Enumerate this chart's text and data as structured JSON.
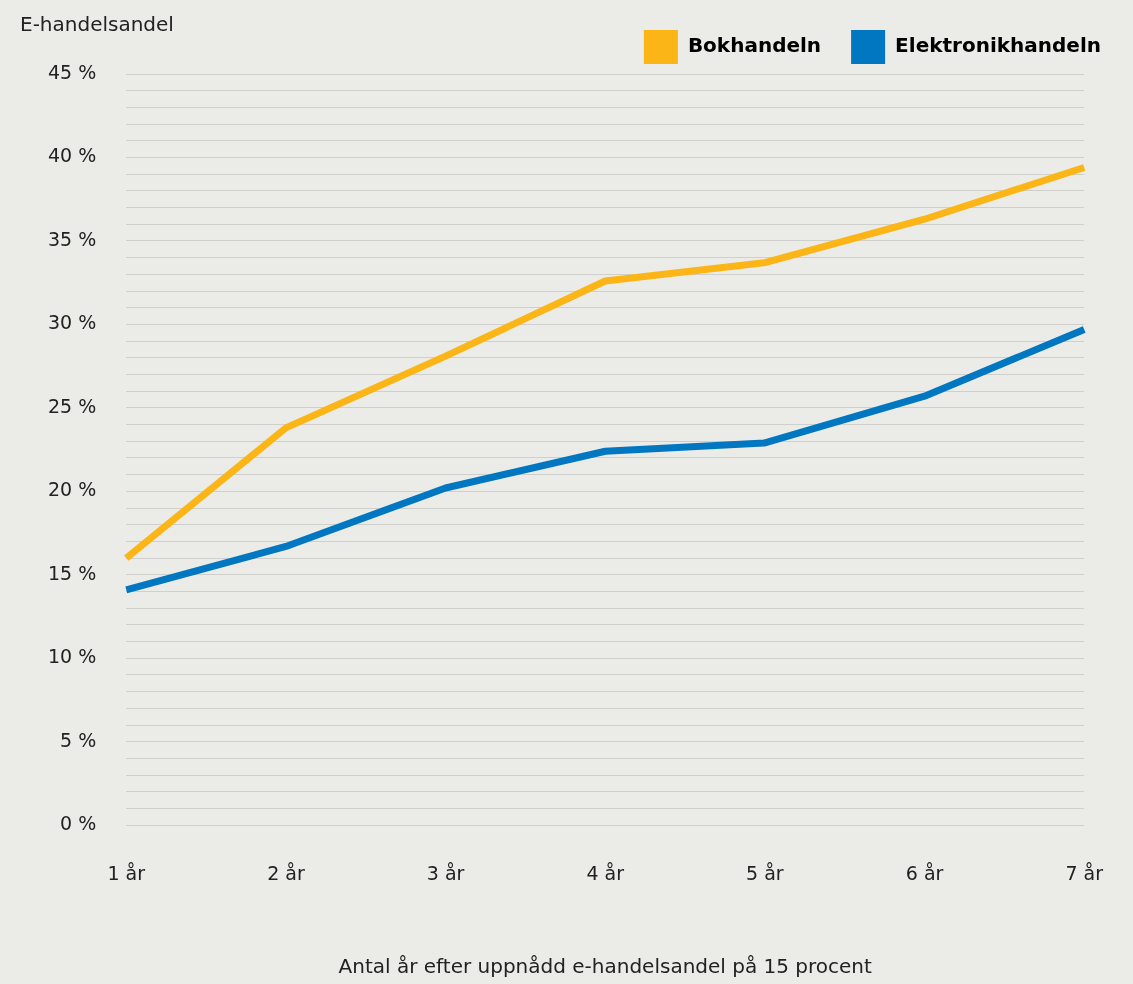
{
  "chart_data": {
    "type": "line",
    "ylabel": "E-handelsandel",
    "xlabel": "Antal år efter uppnådd e-handelsandel på 15 procent",
    "categories": [
      "1 år",
      "2 år",
      "3 år",
      "4 år",
      "5 år",
      "6 år",
      "7 år"
    ],
    "series": [
      {
        "name": "Bokhandeln",
        "color": "#fbb516",
        "values": [
          16.0,
          23.8,
          28.1,
          32.6,
          33.7,
          36.3,
          39.4
        ]
      },
      {
        "name": "Elektronikhandeln",
        "color": "#0077c0",
        "values": [
          14.1,
          16.7,
          20.2,
          22.4,
          22.9,
          25.7,
          29.7
        ]
      }
    ],
    "ylim": [
      0,
      45
    ],
    "yticks": [
      {
        "value": 0,
        "label": "0 %"
      },
      {
        "value": 1,
        "label": null
      },
      {
        "value": 2,
        "label": null
      },
      {
        "value": 3,
        "label": null
      },
      {
        "value": 4,
        "label": null
      },
      {
        "value": 5,
        "label": "5 %"
      },
      {
        "value": 6,
        "label": null
      },
      {
        "value": 7,
        "label": null
      },
      {
        "value": 8,
        "label": null
      },
      {
        "value": 9,
        "label": null
      },
      {
        "value": 10,
        "label": "10 %"
      },
      {
        "value": 11,
        "label": null
      },
      {
        "value": 12,
        "label": null
      },
      {
        "value": 13,
        "label": null
      },
      {
        "value": 14,
        "label": null
      },
      {
        "value": 15,
        "label": "15 %"
      },
      {
        "value": 16,
        "label": null
      },
      {
        "value": 17,
        "label": null
      },
      {
        "value": 18,
        "label": null
      },
      {
        "value": 19,
        "label": null
      },
      {
        "value": 20,
        "label": "20 %"
      },
      {
        "value": 21,
        "label": null
      },
      {
        "value": 22,
        "label": null
      },
      {
        "value": 23,
        "label": null
      },
      {
        "value": 24,
        "label": null
      },
      {
        "value": 25,
        "label": "25 %"
      },
      {
        "value": 26,
        "label": null
      },
      {
        "value": 27,
        "label": null
      },
      {
        "value": 28,
        "label": null
      },
      {
        "value": 29,
        "label": null
      },
      {
        "value": 30,
        "label": "30 %"
      },
      {
        "value": 31,
        "label": null
      },
      {
        "value": 32,
        "label": null
      },
      {
        "value": 33,
        "label": null
      },
      {
        "value": 34,
        "label": null
      },
      {
        "value": 35,
        "label": "35 %"
      },
      {
        "value": 36,
        "label": null
      },
      {
        "value": 37,
        "label": null
      },
      {
        "value": 38,
        "label": null
      },
      {
        "value": 39,
        "label": null
      },
      {
        "value": 40,
        "label": "40 %"
      },
      {
        "value": 41,
        "label": null
      },
      {
        "value": 42,
        "label": null
      },
      {
        "value": 43,
        "label": null
      },
      {
        "value": 44,
        "label": null
      },
      {
        "value": 45,
        "label": "45 %"
      }
    ],
    "grid": "y",
    "legend": "top right",
    "marker": "none",
    "line_style": "solid"
  }
}
